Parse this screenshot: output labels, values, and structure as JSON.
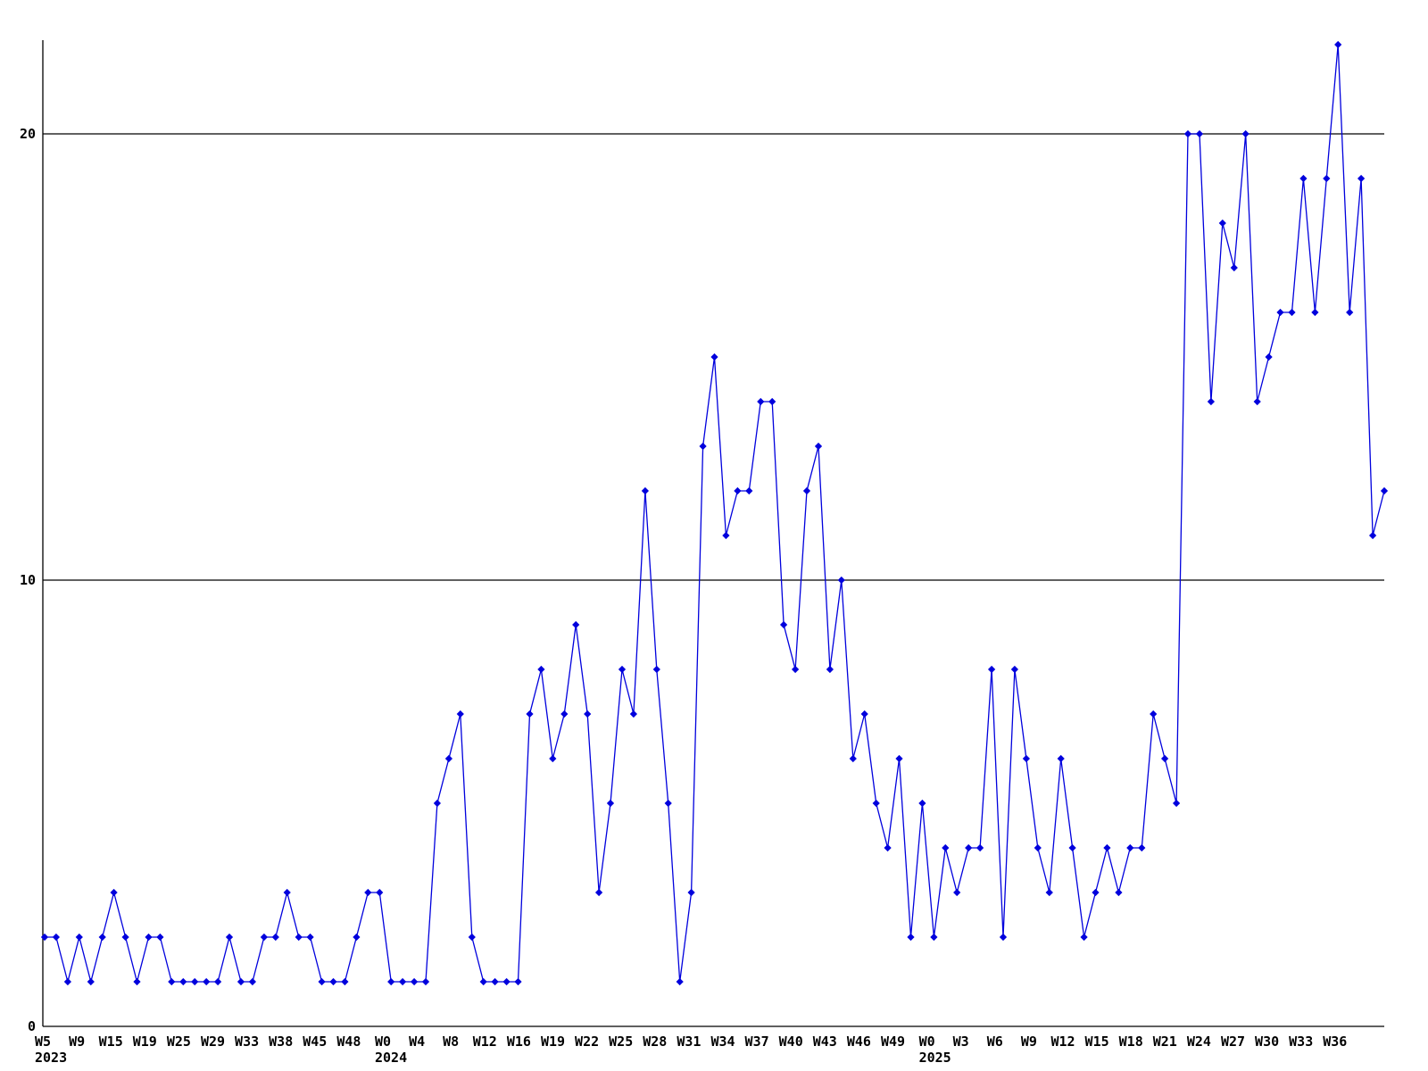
{
  "page": {
    "background_color": "#ffffff",
    "axis_color": "#000000",
    "text_color": "#000000"
  },
  "chart_data": {
    "type": "line",
    "title": "",
    "xlabel": "",
    "ylabel": "",
    "line_color": "#0000dd",
    "marker_color": "#0000dd",
    "marker_shape": "diamond",
    "grid": "horizontal-lines-at-y-ticks",
    "legend": "none",
    "ylim": [
      0,
      22.5
    ],
    "y_ticks": [
      0,
      10,
      20
    ],
    "x_tick_labels": [
      "W5",
      "W9",
      "W15",
      "W19",
      "W25",
      "W29",
      "W33",
      "W38",
      "W45",
      "W48",
      "W0",
      "W4",
      "W8",
      "W12",
      "W16",
      "W19",
      "W22",
      "W25",
      "W28",
      "W31",
      "W34",
      "W37",
      "W40",
      "W43",
      "W46",
      "W49",
      "W0",
      "W3",
      "W6",
      "W9",
      "W12",
      "W15",
      "W18",
      "W21",
      "W24",
      "W27",
      "W30",
      "W33",
      "W36"
    ],
    "year_labels": [
      {
        "tick_index": 0,
        "text": "2023"
      },
      {
        "tick_index": 10,
        "text": "2024"
      },
      {
        "tick_index": 26,
        "text": "2025"
      }
    ],
    "values": [
      2,
      2,
      1,
      2,
      1,
      2,
      3,
      2,
      1,
      2,
      2,
      1,
      1,
      1,
      1,
      1,
      2,
      1,
      1,
      2,
      2,
      3,
      2,
      2,
      1,
      1,
      1,
      2,
      3,
      3,
      1,
      1,
      1,
      1,
      5,
      6,
      7,
      2,
      1,
      1,
      1,
      1,
      7,
      8,
      6,
      7,
      9,
      7,
      3,
      5,
      8,
      7,
      12,
      8,
      5,
      1,
      3,
      13,
      15,
      11,
      12,
      12,
      14,
      14,
      9,
      8,
      12,
      13,
      8,
      10,
      6,
      7,
      5,
      4,
      6,
      2,
      5,
      2,
      4,
      3,
      4,
      4,
      8,
      2,
      8,
      6,
      4,
      3,
      6,
      4,
      2,
      3,
      4,
      3,
      4,
      4,
      7,
      6,
      5,
      20,
      20,
      14,
      18,
      17,
      20,
      14,
      15,
      16,
      16,
      19,
      16,
      19,
      22,
      16,
      19,
      11,
      12
    ]
  }
}
